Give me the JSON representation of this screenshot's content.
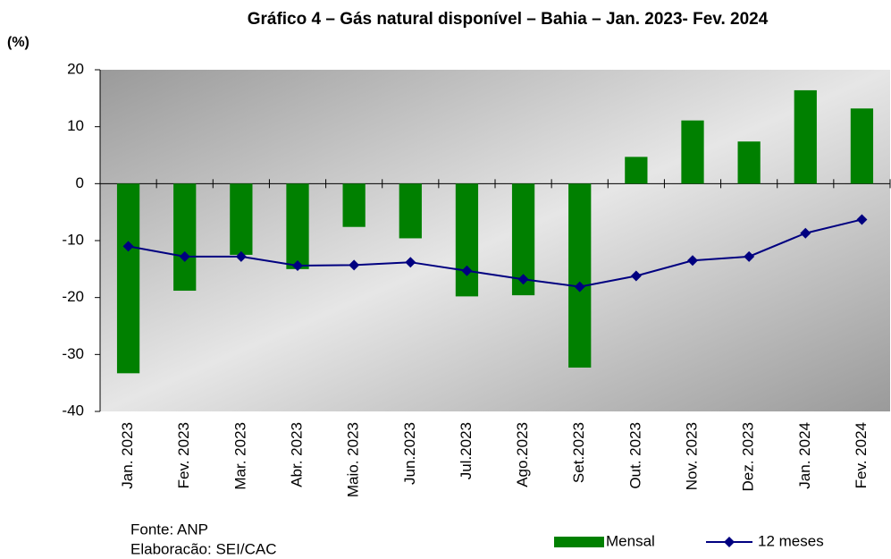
{
  "chart_data": {
    "type": "bar-line",
    "title": "Gráfico 4 – Gás natural disponível – Bahia – Jan. 2023- Fev. 2024",
    "y_label": "(%)",
    "categories": [
      "Jan. 2023",
      "Fev. 2023",
      "Mar. 2023",
      "Abr. 2023",
      "Maio. 2023",
      "Jun.2023",
      "Jul.2023",
      "Ago.2023",
      "Set.2023",
      "Out. 2023",
      "Nov. 2023",
      "Dez. 2023",
      "Jan. 2024",
      "Fev. 2024"
    ],
    "series": [
      {
        "name": "Mensal",
        "type": "bar",
        "color": "#008000",
        "values": [
          -33.3,
          -18.8,
          -12.5,
          -15.0,
          -7.6,
          -9.6,
          -19.8,
          -19.6,
          -32.3,
          4.7,
          11.1,
          7.4,
          16.4,
          13.2
        ]
      },
      {
        "name": "12 meses",
        "type": "line",
        "color": "#000080",
        "values": [
          -11.0,
          -12.8,
          -12.8,
          -14.4,
          -14.3,
          -13.8,
          -15.3,
          -16.8,
          -18.1,
          -16.2,
          -13.5,
          -12.8,
          -8.7,
          -6.3
        ]
      }
    ],
    "ylim": [
      -40,
      20
    ],
    "yticks": [
      -40,
      -30,
      -20,
      -10,
      0,
      10,
      20
    ],
    "legend": "bottom-right",
    "notes": [
      "Fonte: ANP",
      "Elaboracão: SEI/CAC"
    ]
  }
}
